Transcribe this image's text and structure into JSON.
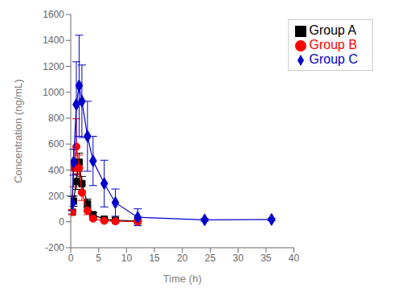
{
  "chart_data": {
    "type": "line",
    "title": "",
    "xlabel": "Time (h)",
    "ylabel": "Concentration (ng/mL)",
    "xlim": [
      0,
      40
    ],
    "ylim": [
      -200,
      1600
    ],
    "xticks": [
      0,
      5,
      10,
      15,
      20,
      25,
      30,
      35,
      40
    ],
    "yticks": [
      -200,
      0,
      200,
      400,
      600,
      800,
      1000,
      1200,
      1400,
      1600
    ],
    "grid": false,
    "legend": "upper right",
    "series": [
      {
        "name": "Group A",
        "color": "#000000",
        "marker": "square",
        "x": [
          0.25,
          0.5,
          1.0,
          1.5,
          2.0,
          3.0,
          4.0,
          6.0,
          8.0,
          12.0
        ],
        "values": [
          75,
          160,
          310,
          460,
          295,
          140,
          55,
          20,
          12,
          5
        ],
        "error": [
          15,
          40,
          60,
          70,
          55,
          35,
          15,
          8,
          4,
          2
        ]
      },
      {
        "name": "Group B",
        "color": "#ff0000",
        "marker": "circle",
        "x": [
          0.25,
          0.5,
          1.0,
          1.5,
          2.0,
          3.0,
          4.0,
          6.0,
          8.0,
          12.0
        ],
        "values": [
          75,
          415,
          580,
          415,
          225,
          85,
          25,
          8,
          4,
          2
        ],
        "error": [
          20,
          145,
          215,
          100,
          60,
          30,
          12,
          4,
          2,
          1
        ]
      },
      {
        "name": "Group C",
        "color": "#0000cd",
        "marker": "diamond",
        "x": [
          0.25,
          0.5,
          1.0,
          1.5,
          2.0,
          3.0,
          4.0,
          6.0,
          8.0,
          12.0,
          24.0,
          36.0
        ],
        "values": [
          140,
          460,
          905,
          1050,
          930,
          660,
          470,
          295,
          148,
          35,
          15,
          18
        ],
        "error": [
          55,
          100,
          330,
          390,
          280,
          270,
          190,
          180,
          105,
          65,
          10,
          10
        ]
      }
    ]
  }
}
